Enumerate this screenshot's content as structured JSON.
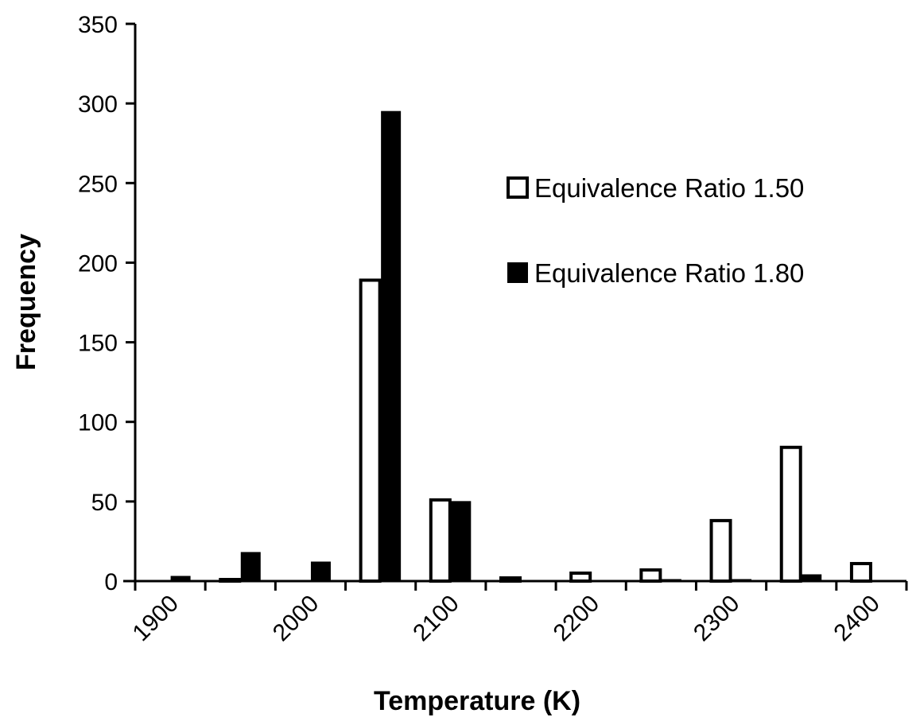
{
  "chart_data": {
    "type": "bar",
    "xlabel": "Temperature (K)",
    "ylabel": "Frequency",
    "ylim": [
      0,
      350
    ],
    "yticks": [
      "0",
      "50",
      "100",
      "150",
      "200",
      "250",
      "300",
      "350"
    ],
    "xticks": [
      "1900",
      "2000",
      "2100",
      "2200",
      "2300",
      "2400"
    ],
    "bins": [
      "1900-1950",
      "1950-2000",
      "2000-2050",
      "2050-2100",
      "2100-2150",
      "2150-2200",
      "2200-2250",
      "2250-2300",
      "2300-2350",
      "2350-2400",
      "2400-2450"
    ],
    "series": [
      {
        "name": "Equivalence Ratio 1.50",
        "fill": "#ffffff",
        "values": [
          0,
          1,
          0,
          189,
          51,
          2,
          5,
          7,
          38,
          84,
          11
        ]
      },
      {
        "name": "Equivalence Ratio 1.80",
        "fill": "#000000",
        "values": [
          3,
          18,
          12,
          295,
          50,
          0,
          0,
          1,
          1,
          4,
          0
        ]
      }
    ],
    "legend_position": "top-right",
    "grid": false
  }
}
